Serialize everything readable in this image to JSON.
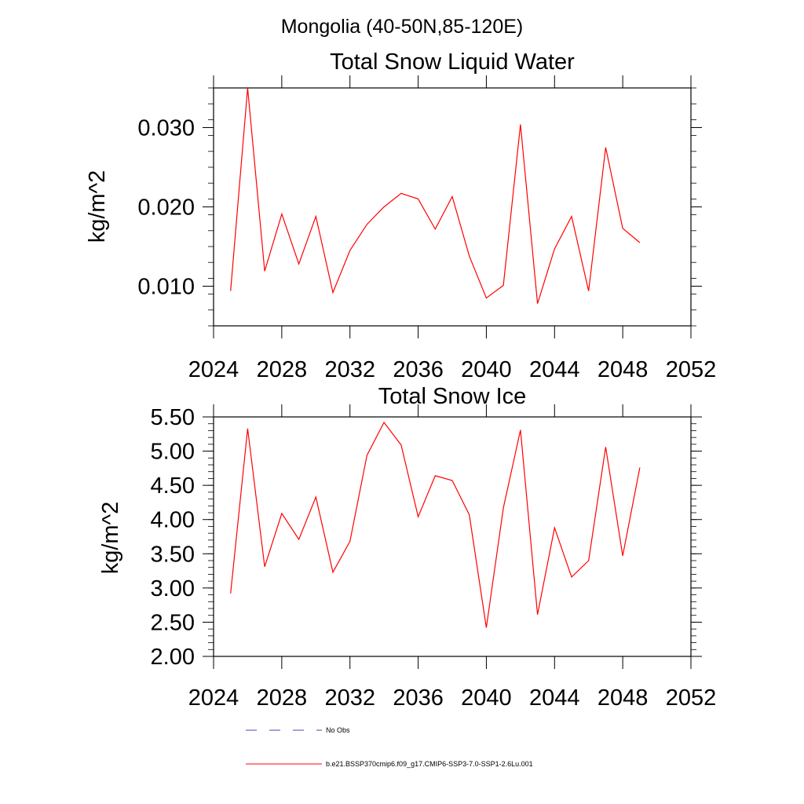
{
  "suptitle": "Mongolia (40-50N,85-120E)",
  "legend": {
    "items": [
      {
        "label": "No Obs",
        "color": "#4a4ab0",
        "style": "dashed"
      },
      {
        "label": "b.e21.BSSP370cmip6.f09_g17.CMIP6-SSP3-7.0-SSP1-2.6Lu.001",
        "color": "#ff0000",
        "style": "solid"
      }
    ]
  },
  "chart_data": [
    {
      "type": "line",
      "title": "Total Snow Liquid Water",
      "xlabel": "",
      "ylabel": "kg/m^2",
      "xlim": [
        2024,
        2052
      ],
      "ylim": [
        0.005,
        0.035
      ],
      "xticks": [
        2024,
        2028,
        2032,
        2036,
        2040,
        2044,
        2048,
        2052
      ],
      "xtick_labels": [
        "2024",
        "2028",
        "2032",
        "2036",
        "2040",
        "2044",
        "2048",
        "2052"
      ],
      "yticks": [
        0.01,
        0.02,
        0.03
      ],
      "ytick_labels": [
        "0.010",
        "0.020",
        "0.030"
      ],
      "yminor_step": 0.002,
      "grid": false,
      "series": [
        {
          "name": "b.e21.BSSP370cmip6.f09_g17.CMIP6-SSP3-7.0-SSP1-2.6Lu.001",
          "color": "#ff0000",
          "x": [
            2025,
            2026,
            2027,
            2028,
            2029,
            2030,
            2031,
            2032,
            2033,
            2034,
            2035,
            2036,
            2037,
            2038,
            2039,
            2040,
            2041,
            2042,
            2043,
            2044,
            2045,
            2046,
            2047,
            2048,
            2049
          ],
          "y": [
            0.0094,
            0.035,
            0.0119,
            0.0191,
            0.0128,
            0.0188,
            0.0092,
            0.0145,
            0.0178,
            0.02,
            0.0217,
            0.021,
            0.0172,
            0.0213,
            0.0138,
            0.0085,
            0.0101,
            0.0304,
            0.0078,
            0.0147,
            0.0188,
            0.0094,
            0.0275,
            0.0173,
            0.0155
          ]
        }
      ]
    },
    {
      "type": "line",
      "title": "Total Snow Ice",
      "xlabel": "",
      "ylabel": "kg/m^2",
      "xlim": [
        2024,
        2052
      ],
      "ylim": [
        2.0,
        5.5
      ],
      "xticks": [
        2024,
        2028,
        2032,
        2036,
        2040,
        2044,
        2048,
        2052
      ],
      "xtick_labels": [
        "2024",
        "2028",
        "2032",
        "2036",
        "2040",
        "2044",
        "2048",
        "2052"
      ],
      "yticks": [
        2.0,
        2.5,
        3.0,
        3.5,
        4.0,
        4.5,
        5.0,
        5.5
      ],
      "ytick_labels": [
        "2.00",
        "2.50",
        "3.00",
        "3.50",
        "4.00",
        "4.50",
        "5.00",
        "5.50"
      ],
      "yminor_step": 0.1,
      "grid": false,
      "series": [
        {
          "name": "b.e21.BSSP370cmip6.f09_g17.CMIP6-SSP3-7.0-SSP1-2.6Lu.001",
          "color": "#ff0000",
          "x": [
            2025,
            2026,
            2027,
            2028,
            2029,
            2030,
            2031,
            2032,
            2033,
            2034,
            2035,
            2036,
            2037,
            2038,
            2039,
            2040,
            2041,
            2042,
            2043,
            2044,
            2045,
            2046,
            2047,
            2048,
            2049
          ],
          "y": [
            2.92,
            5.33,
            3.31,
            4.09,
            3.71,
            4.33,
            3.23,
            3.68,
            4.94,
            5.42,
            5.09,
            4.04,
            4.64,
            4.57,
            4.07,
            2.42,
            4.17,
            5.31,
            2.61,
            3.88,
            3.16,
            3.4,
            5.06,
            3.47,
            4.76
          ]
        }
      ]
    }
  ]
}
